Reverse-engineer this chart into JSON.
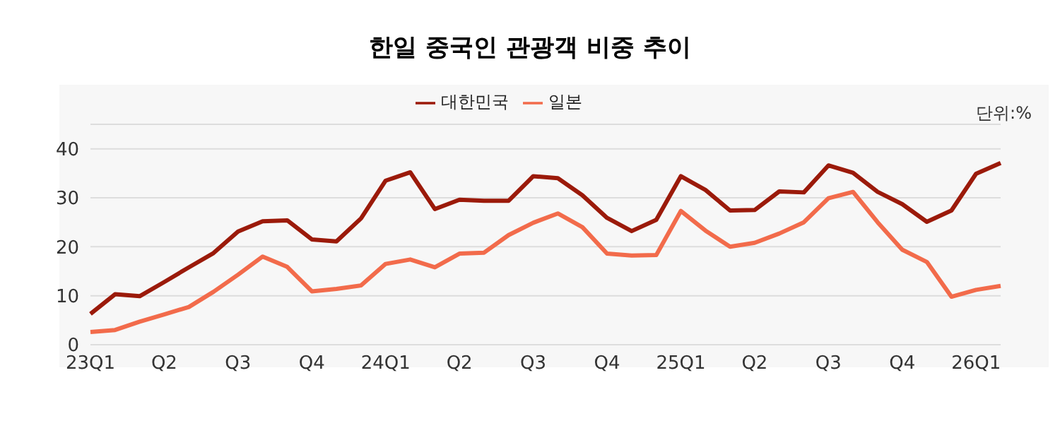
{
  "chart_data": {
    "type": "line",
    "title": "한일 중국인 관광객 비중 추이",
    "annotations": [
      "단위:%"
    ],
    "categories": [
      "23Q1",
      null,
      null,
      "Q2",
      null,
      null,
      "Q3",
      null,
      null,
      "Q4",
      null,
      null,
      "24Q1",
      null,
      null,
      "Q2",
      null,
      null,
      "Q3",
      null,
      null,
      "Q4",
      null,
      null,
      "25Q1",
      null,
      null,
      "Q2",
      null,
      null,
      "Q3",
      null,
      null,
      "Q4",
      null,
      null,
      "26Q1",
      null
    ],
    "series": [
      {
        "name": "대한민국",
        "color": "#9b1a0a",
        "values": [
          6.3,
          10.3,
          9.9,
          12.8,
          15.8,
          18.7,
          23.1,
          25.2,
          25.4,
          21.5,
          21.1,
          25.8,
          33.5,
          35.2,
          27.7,
          29.6,
          29.4,
          29.4,
          34.4,
          34.0,
          30.5,
          25.9,
          23.2,
          25.5,
          34.4,
          31.6,
          27.4,
          27.5,
          31.3,
          31.1,
          36.6,
          35.1,
          31.2,
          28.7,
          25.1,
          27.4,
          34.9,
          37.1
        ]
      },
      {
        "name": "일본",
        "color": "#f26b4b",
        "values": [
          2.6,
          3.0,
          4.7,
          6.2,
          7.7,
          10.8,
          14.3,
          18.0,
          15.9,
          10.9,
          11.4,
          12.1,
          16.5,
          17.4,
          15.8,
          18.6,
          18.8,
          22.4,
          24.9,
          26.8,
          24.0,
          18.6,
          18.2,
          18.3,
          27.3,
          23.3,
          20.0,
          20.8,
          22.7,
          25.0,
          29.9,
          31.2,
          25.0,
          19.4,
          16.9,
          9.8,
          11.2,
          12.0
        ]
      }
    ],
    "ylim": [
      0,
      45
    ],
    "yticks": [
      0,
      10,
      20,
      30,
      40
    ],
    "grid": "y",
    "legend": "top",
    "marker": "none",
    "line_style": "solid"
  }
}
